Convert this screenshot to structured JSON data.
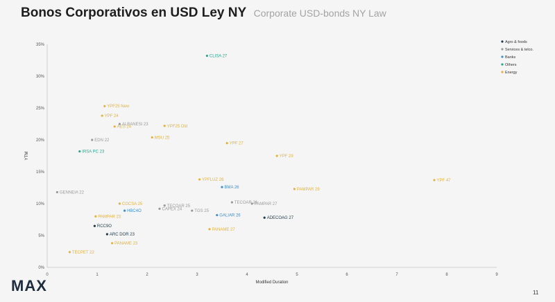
{
  "header": {
    "title": "Bonos Corporativos en USD Ley NY",
    "subtitle": "Corporate USD-bonds NY Law"
  },
  "footer": {
    "logo": "MAX",
    "page": "11"
  },
  "chart_data": {
    "type": "scatter",
    "xlabel": "Modified Duration",
    "ylabel": "YTM",
    "xlim": [
      0,
      9
    ],
    "ylim": [
      0,
      35
    ],
    "xticks": [
      "0",
      "1",
      "2",
      "3",
      "4",
      "5",
      "6",
      "7",
      "8",
      "9"
    ],
    "yticks": [
      "0%",
      "5%",
      "10%",
      "15%",
      "20%",
      "25%",
      "30%",
      "35%"
    ],
    "grid": false,
    "legend_position": "top-right",
    "series": [
      {
        "name": "Agro & foods",
        "color": "#1f3a4d",
        "points": [
          {
            "label": "RCC9O",
            "x": 0.95,
            "y": 6.5
          },
          {
            "label": "ARC DOR 23",
            "x": 1.2,
            "y": 5.2
          },
          {
            "label": "ADECOAG 27",
            "x": 4.35,
            "y": 7.8
          }
        ]
      },
      {
        "name": "Services & telco.",
        "color": "#9a9a9a",
        "points": [
          {
            "label": "GENNEIA 22",
            "x": 0.2,
            "y": 11.8
          },
          {
            "label": "EDN 22",
            "x": 0.9,
            "y": 20.0
          },
          {
            "label": "ALBANESI 23",
            "x": 1.45,
            "y": 22.5
          },
          {
            "label": "TECOAR 25",
            "x": 2.35,
            "y": 9.7
          },
          {
            "label": "CAPEX 24",
            "x": 2.25,
            "y": 9.2
          },
          {
            "label": "TGS 25",
            "x": 2.9,
            "y": 8.9
          },
          {
            "label": "TECOAR 26",
            "x": 3.7,
            "y": 10.2
          },
          {
            "label": "PAMPAR 27",
            "x": 4.1,
            "y": 10.0
          }
        ]
      },
      {
        "name": "Banks",
        "color": "#3d8fd1",
        "points": [
          {
            "label": "BMA 26",
            "x": 3.5,
            "y": 12.6
          },
          {
            "label": "HBC4O",
            "x": 1.55,
            "y": 8.9
          },
          {
            "label": "GALIAR 26",
            "x": 3.4,
            "y": 8.2
          }
        ]
      },
      {
        "name": "Others",
        "color": "#2aa68f",
        "points": [
          {
            "label": "CLISA 27",
            "x": 3.2,
            "y": 33.2
          },
          {
            "label": "IRSA PC 23",
            "x": 0.65,
            "y": 18.2
          }
        ]
      },
      {
        "name": "Energy",
        "color": "#e3b341",
        "points": [
          {
            "label": "YPF25 New",
            "x": 1.15,
            "y": 25.3
          },
          {
            "label": "YPF 24",
            "x": 1.1,
            "y": 23.8
          },
          {
            "label": "AES 24",
            "x": 1.35,
            "y": 22.1
          },
          {
            "label": "YPF25 Old",
            "x": 2.35,
            "y": 22.2
          },
          {
            "label": "MSU 25",
            "x": 2.1,
            "y": 20.4
          },
          {
            "label": "YPF 27",
            "x": 3.6,
            "y": 19.5
          },
          {
            "label": "YPF 29",
            "x": 4.6,
            "y": 17.5
          },
          {
            "label": "YPF 47",
            "x": 7.75,
            "y": 13.7
          },
          {
            "label": "YPFLUZ 26",
            "x": 3.05,
            "y": 13.8
          },
          {
            "label": "PAMPAR 29",
            "x": 4.95,
            "y": 12.3
          },
          {
            "label": "CGCSA 25",
            "x": 1.45,
            "y": 10.0
          },
          {
            "label": "PAMPAR 23",
            "x": 0.97,
            "y": 8.0
          },
          {
            "label": "PANAME 27",
            "x": 3.25,
            "y": 6.0
          },
          {
            "label": "PANAME 23",
            "x": 1.3,
            "y": 3.8
          },
          {
            "label": "TECPET 22",
            "x": 0.45,
            "y": 2.4
          }
        ]
      }
    ]
  }
}
